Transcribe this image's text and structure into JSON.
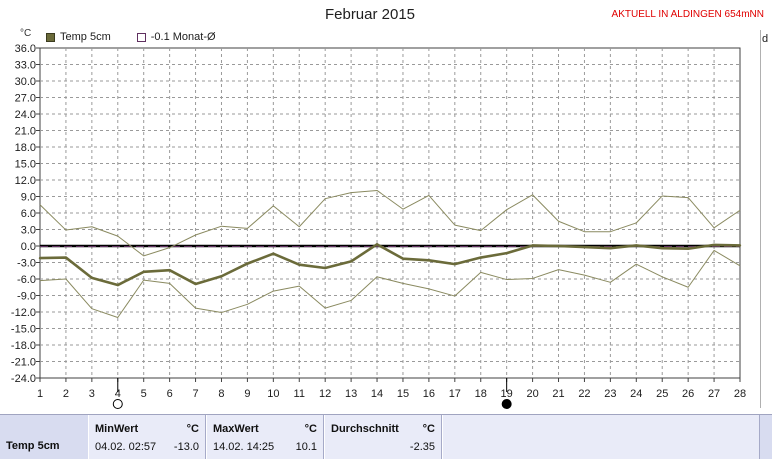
{
  "title": "Februar 2015",
  "status": "AKTUELL IN ALDINGEN 654mNN",
  "right_label": "d",
  "legend": [
    {
      "label": "Temp 5cm",
      "color": "#6b6b3a"
    },
    {
      "label": "-0.1 Monat-Ø",
      "color": "#603060"
    }
  ],
  "chart_data": {
    "type": "line",
    "title": "Februar 2015",
    "ylabel": "°C",
    "ylim": [
      -24,
      36
    ],
    "yticks": [
      "36.0",
      "33.0",
      "30.0",
      "27.0",
      "24.0",
      "21.0",
      "18.0",
      "15.0",
      "12.0",
      "9.0",
      "6.0",
      "3.0",
      "0.0",
      "-3.0",
      "-6.0",
      "-9.0",
      "-12.0",
      "-15.0",
      "-18.0",
      "-21.0",
      "-24.0"
    ],
    "x": [
      1,
      2,
      3,
      4,
      5,
      6,
      7,
      8,
      9,
      10,
      11,
      12,
      13,
      14,
      15,
      16,
      17,
      18,
      19,
      20,
      21,
      22,
      23,
      24,
      25,
      26,
      27,
      28
    ],
    "grid": true,
    "zero_line": 0.0,
    "monthly_mean": -0.1,
    "series": [
      {
        "name": "Temp 5cm",
        "color": "#6b6b3a",
        "values": [
          -2.2,
          -2.1,
          -5.8,
          -7.1,
          -4.7,
          -4.4,
          -6.9,
          -5.5,
          -3.2,
          -1.4,
          -3.4,
          -4.0,
          -2.8,
          0.3,
          -2.3,
          -2.6,
          -3.3,
          -2.1,
          -1.3,
          0.1,
          0.0,
          -0.2,
          -0.4,
          0.1,
          -0.4,
          -0.5,
          0.2,
          0.1
        ]
      },
      {
        "role": "max",
        "color": "#8a8a60",
        "values": [
          7.5,
          2.9,
          3.5,
          1.8,
          -1.8,
          -0.3,
          2.0,
          3.6,
          3.2,
          7.3,
          3.5,
          8.6,
          9.7,
          10.1,
          6.7,
          9.2,
          3.8,
          2.8,
          6.6,
          9.3,
          4.5,
          2.6,
          2.6,
          4.2,
          9.1,
          8.8,
          3.3,
          6.5
        ]
      },
      {
        "role": "min",
        "color": "#8a8a60",
        "values": [
          -6.3,
          -6.0,
          -11.4,
          -13.0,
          -6.2,
          -6.8,
          -11.3,
          -12.1,
          -10.6,
          -8.2,
          -7.3,
          -11.3,
          -9.9,
          -5.6,
          -6.8,
          -7.8,
          -9.1,
          -4.8,
          -6.1,
          -5.9,
          -4.3,
          -5.3,
          -6.6,
          -3.3,
          -5.6,
          -7.5,
          -0.8,
          -3.6
        ]
      }
    ],
    "markers": [
      {
        "x": 4,
        "symbol": "empty-circle"
      },
      {
        "x": 19,
        "symbol": "filled-circle"
      }
    ]
  },
  "stats": {
    "row_label": "Temp 5cm",
    "min": {
      "header": "MinWert",
      "unit": "°C",
      "time": "04.02.  02:57",
      "value": "-13.0"
    },
    "max": {
      "header": "MaxWert",
      "unit": "°C",
      "time": "14.02.  14:25",
      "value": "10.1"
    },
    "avg": {
      "header": "Durchschnitt",
      "unit": "°C",
      "value": "-2.35"
    }
  }
}
